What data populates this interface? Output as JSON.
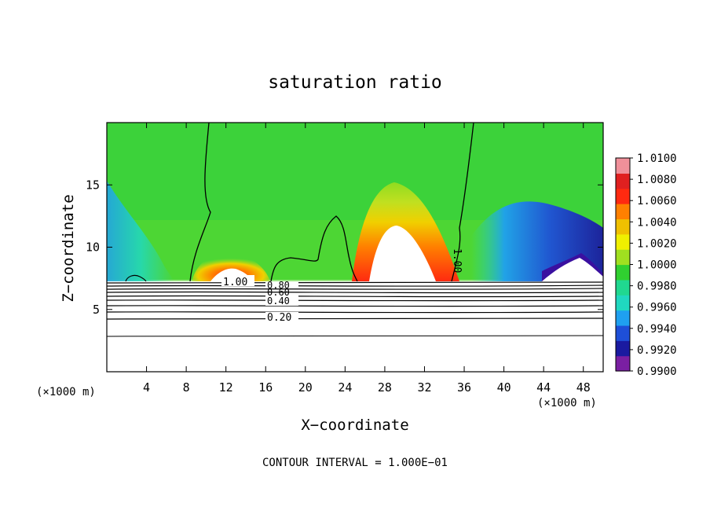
{
  "chart_data": {
    "type": "heatmap",
    "title": "saturation ratio",
    "xlabel": "X−coordinate",
    "ylabel": "Z−coordinate",
    "x_unit_left": "(×1000 m)",
    "x_unit_right": "(×1000 m)",
    "footer": "CONTOUR INTERVAL = 1.000E−01",
    "xlim": [
      0,
      50
    ],
    "ylim": [
      0,
      20
    ],
    "x_ticks": [
      4,
      8,
      12,
      16,
      20,
      24,
      28,
      32,
      36,
      40,
      44,
      48
    ],
    "x_tick_labels": [
      "4",
      "8",
      "12",
      "16",
      "20",
      "24",
      "28",
      "32",
      "36",
      "40",
      "44",
      "48"
    ],
    "y_ticks": [
      5,
      10,
      15
    ],
    "y_tick_labels": [
      "5",
      "10",
      "15"
    ],
    "colorbar": {
      "min": 0.99,
      "max": 1.01,
      "labels": [
        "1.0100",
        "1.0080",
        "1.0060",
        "1.0040",
        "1.0020",
        "1.0000",
        "0.9980",
        "0.9960",
        "0.9940",
        "0.9920",
        "0.9900"
      ],
      "colors": [
        "#7a1fa2",
        "#1a1aa0",
        "#1e4fd8",
        "#1fa0f0",
        "#20d8c0",
        "#20d890",
        "#30d030",
        "#a0e020",
        "#f0f000",
        "#f0c000",
        "#ff8000",
        "#ff2a10",
        "#e02020",
        "#f0909a"
      ]
    },
    "contour_labels": [
      "1.00",
      "1.00",
      "0.80",
      "0.60",
      "0.40",
      "0.20"
    ],
    "contour_levels_below": [
      0.9,
      0.8,
      0.7,
      0.6,
      0.5,
      0.4,
      0.3,
      0.2,
      0.1
    ],
    "cloud_base_z": 7.2,
    "supersaturated_features": [
      {
        "x_center": 29.5,
        "top_z": 15,
        "peak": 1.01
      },
      {
        "x_center": 12.5,
        "top_z": 9.5,
        "peak": 1.006
      },
      {
        "x_center": 1.5,
        "top_z": 7.8,
        "peak": 1.0
      }
    ],
    "subsaturated_features": [
      {
        "x_range": [
          38,
          50
        ],
        "min_z": 7.2,
        "max_z": 11.5,
        "min_value": 0.99
      }
    ]
  }
}
